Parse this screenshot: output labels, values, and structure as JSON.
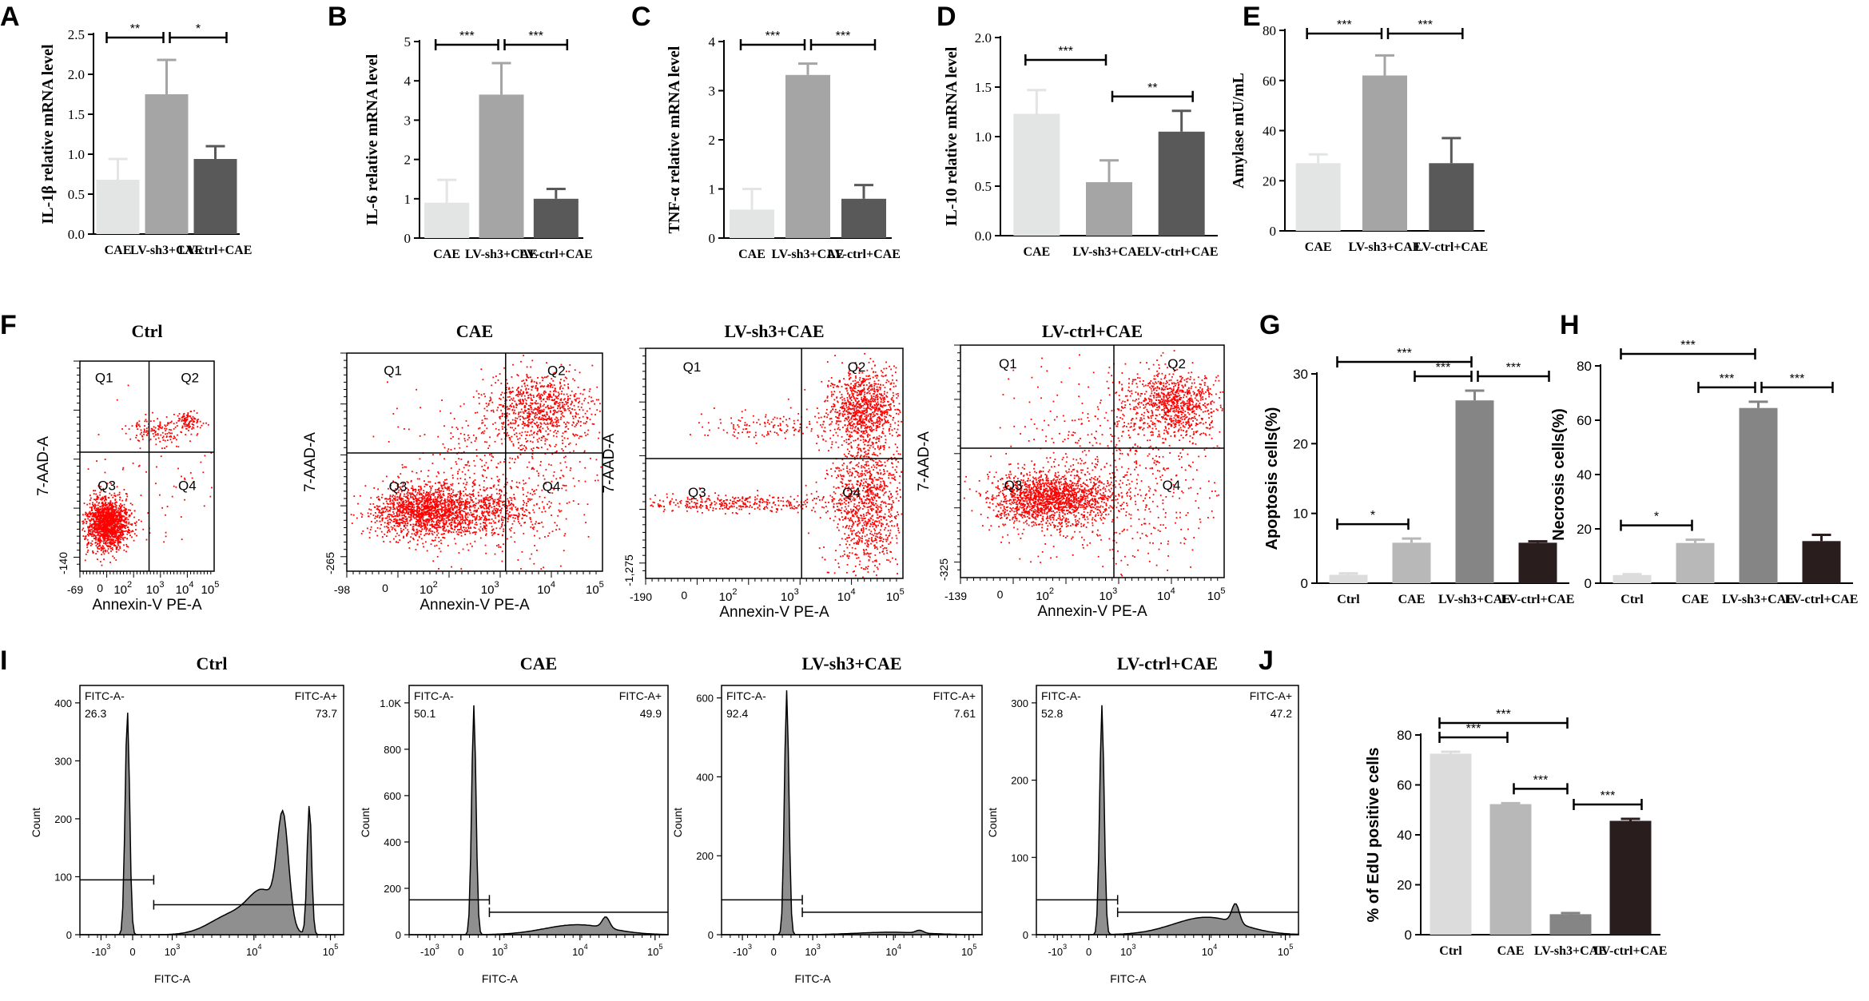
{
  "colors": {
    "light": "#e3e4e4",
    "mid": "#a5a5a5",
    "dark": "#595959",
    "g_light": "#dcdcdc",
    "g_mid": "#b8b8b8",
    "g_dark": "#858585",
    "g_black": "#2a1d1d",
    "dot": "#ff0000",
    "hist_fill": "#8f8f8f"
  },
  "chart_data": [
    {
      "panel": "A",
      "type": "bar",
      "categories": [
        "CAE",
        "LV-sh3+CAE",
        "LV-ctrl+CAE"
      ],
      "values": [
        0.68,
        1.75,
        0.94
      ],
      "errors": [
        0.26,
        0.43,
        0.16
      ],
      "ylabel": "IL-1β relative mRNA level",
      "ylim": [
        0,
        2.5
      ],
      "yticks": [
        "0.0",
        "0.5",
        "1.0",
        "1.5",
        "2.0",
        "2.5"
      ],
      "sig": [
        {
          "from": 0,
          "to": 1,
          "label": "**"
        },
        {
          "from": 1,
          "to": 2,
          "label": "*"
        }
      ]
    },
    {
      "panel": "B",
      "type": "bar",
      "categories": [
        "CAE",
        "LV-sh3+CAE",
        "LV-ctrl+CAE"
      ],
      "values": [
        0.9,
        3.65,
        1.0
      ],
      "errors": [
        0.58,
        0.8,
        0.25
      ],
      "ylabel": "IL-6 relative mRNA level",
      "ylim": [
        0,
        5
      ],
      "yticks": [
        "0",
        "1",
        "2",
        "3",
        "4",
        "5"
      ],
      "sig": [
        {
          "from": 0,
          "to": 1,
          "label": "***"
        },
        {
          "from": 1,
          "to": 2,
          "label": "***"
        }
      ]
    },
    {
      "panel": "C",
      "type": "bar",
      "categories": [
        "CAE",
        "LV-sh3+CAE",
        "LV-ctrl+CAE"
      ],
      "values": [
        0.58,
        3.32,
        0.8
      ],
      "errors": [
        0.42,
        0.23,
        0.28
      ],
      "ylabel": "TNF-α relative mRNA level",
      "ylim": [
        0,
        4
      ],
      "yticks": [
        "0",
        "1",
        "2",
        "3",
        "4"
      ],
      "sig": [
        {
          "from": 0,
          "to": 1,
          "label": "***"
        },
        {
          "from": 1,
          "to": 2,
          "label": "***"
        }
      ]
    },
    {
      "panel": "D",
      "type": "bar",
      "categories": [
        "CAE",
        "LV-sh3+CAE",
        "LV-ctrl+CAE"
      ],
      "values": [
        1.23,
        0.54,
        1.05
      ],
      "errors": [
        0.24,
        0.22,
        0.21
      ],
      "ylabel": "IL-10 relative mRNA level",
      "ylim": [
        0,
        2
      ],
      "yticks": [
        "0.0",
        "0.5",
        "1.0",
        "1.5",
        "2.0"
      ],
      "sig": [
        {
          "from": 0,
          "to": 1,
          "label": "***"
        },
        {
          "from": 1,
          "to": 2,
          "label": "**"
        }
      ]
    },
    {
      "panel": "E",
      "type": "bar",
      "categories": [
        "CAE",
        "LV-sh3+CAE",
        "LV-ctrl+CAE"
      ],
      "values": [
        27,
        62,
        27
      ],
      "errors": [
        3.5,
        8,
        10
      ],
      "ylabel": "Amylase  mU/mL",
      "ylim": [
        0,
        80
      ],
      "yticks": [
        "0",
        "20",
        "40",
        "60",
        "80"
      ],
      "sig": [
        {
          "from": 0,
          "to": 1,
          "label": "***"
        },
        {
          "from": 1,
          "to": 2,
          "label": "***"
        }
      ]
    },
    {
      "panel": "G",
      "type": "bar",
      "categories": [
        "Ctrl",
        "CAE",
        "LV-sh3+CAE",
        "LV-ctrl+CAE"
      ],
      "values": [
        1.2,
        5.8,
        26.2,
        5.8
      ],
      "errors": [
        0.2,
        0.6,
        1.4,
        0.2
      ],
      "ylabel": "Apoptosis cells(%)",
      "ylim": [
        0,
        30
      ],
      "yticks": [
        "0",
        "10",
        "20",
        "30"
      ],
      "sig": [
        {
          "from": 0,
          "to": 2,
          "label": "***"
        },
        {
          "from": 2,
          "to": 3,
          "label": "***"
        },
        {
          "from": 1,
          "to": 2,
          "label": "***"
        },
        {
          "from": 0,
          "to": 1,
          "label": "*"
        }
      ]
    },
    {
      "panel": "H",
      "type": "bar",
      "categories": [
        "Ctrl",
        "CAE",
        "LV-sh3+CAE",
        "LV-ctrl+CAE"
      ],
      "values": [
        3,
        14.8,
        64.5,
        15.5
      ],
      "errors": [
        0.3,
        1.2,
        2.3,
        2.3
      ],
      "ylabel": "Necrosis cells(%)",
      "ylim": [
        0,
        80
      ],
      "yticks": [
        "0",
        "20",
        "40",
        "60",
        "80"
      ],
      "sig": [
        {
          "from": 0,
          "to": 2,
          "label": "***"
        },
        {
          "from": 1,
          "to": 2,
          "label": "***"
        },
        {
          "from": 2,
          "to": 3,
          "label": "***"
        },
        {
          "from": 0,
          "to": 1,
          "label": "*"
        }
      ]
    },
    {
      "panel": "J",
      "type": "bar",
      "categories": [
        "Ctrl",
        "CAE",
        "LV-sh3+CAE",
        "LV-ctrl+CAE"
      ],
      "values": [
        72.5,
        52.3,
        8.2,
        45.6
      ],
      "errors": [
        0.8,
        0.4,
        0.5,
        0.8
      ],
      "ylabel": "% of EdU positive cells",
      "ylim": [
        0,
        80
      ],
      "yticks": [
        "0",
        "20",
        "40",
        "60",
        "80"
      ],
      "sig": [
        {
          "from": 0,
          "to": 2,
          "label": "***"
        },
        {
          "from": 0,
          "to": 1,
          "label": "***"
        },
        {
          "from": 1,
          "to": 2,
          "label": "***"
        },
        {
          "from": 2,
          "to": 3,
          "label": "***"
        }
      ]
    },
    {
      "panel": "F",
      "type": "scatter",
      "xlabel": "Annexin-V PE-A",
      "ylabel": "7-AAD-A",
      "quadrants": [
        "Q1",
        "Q2",
        "Q3",
        "Q4"
      ],
      "plots": [
        {
          "title": "Ctrl",
          "xmin": "-69",
          "ymin": "-140"
        },
        {
          "title": "CAE",
          "xmin": "-98",
          "ymin": "-265"
        },
        {
          "title": "LV-sh3+CAE",
          "xmin": "-190",
          "ymin": "-1,275"
        },
        {
          "title": "LV-ctrl+CAE",
          "xmin": "-139",
          "ymin": "-325"
        }
      ]
    },
    {
      "panel": "I",
      "type": "area",
      "xlabel": "FITC-A",
      "ylabel": "Count",
      "gate_neg": "FITC-A-",
      "gate_pos": "FITC-A+",
      "plots": [
        {
          "title": "Ctrl",
          "neg": "26.3",
          "pos": "73.7",
          "yticks": [
            "0",
            "100",
            "200",
            "300",
            "400"
          ]
        },
        {
          "title": "CAE",
          "neg": "50.1",
          "pos": "49.9",
          "yticks": [
            "0",
            "200",
            "400",
            "600",
            "800",
            "1.0K"
          ]
        },
        {
          "title": "LV-sh3+CAE",
          "neg": "92.4",
          "pos": "7.61",
          "yticks": [
            "0",
            "200",
            "400",
            "600"
          ]
        },
        {
          "title": "LV-ctrl+CAE",
          "neg": "52.8",
          "pos": "47.2",
          "yticks": [
            "0",
            "100",
            "200",
            "300"
          ]
        }
      ]
    }
  ],
  "panel_letters": [
    "A",
    "B",
    "C",
    "D",
    "E",
    "F",
    "G",
    "H",
    "I",
    "J"
  ]
}
